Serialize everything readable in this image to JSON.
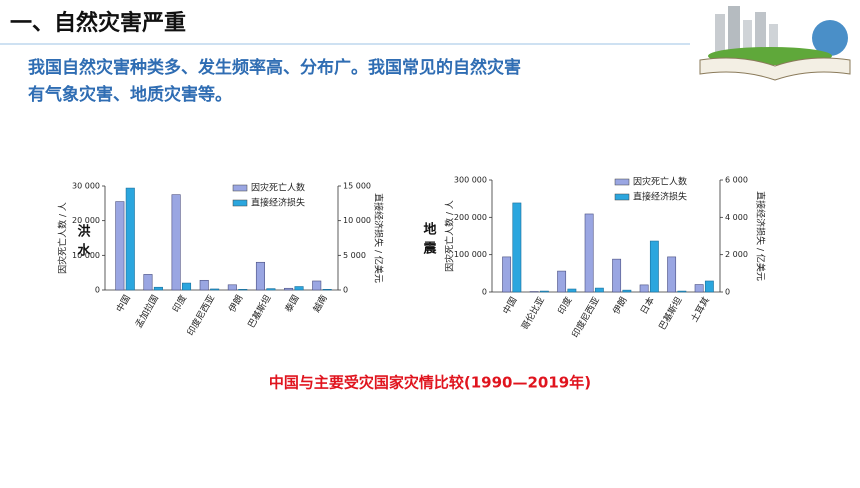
{
  "slide_title": "一、自然灾害严重",
  "intro": [
    "我国自然灾害种类多、发生频率高、分布广。我国常见的自然灾害",
    "有气象灾害、地质灾害等。"
  ],
  "chart_data": [
    {
      "type": "bar",
      "side_label": "洪水",
      "categories": [
        "中国",
        "孟加拉国",
        "印度",
        "印度尼西亚",
        "伊朗",
        "巴基斯坦",
        "泰国",
        "越南"
      ],
      "series": [
        {
          "name": "因灾死亡人数",
          "color": "#9aa6e2",
          "values": [
            25500,
            4500,
            27500,
            2800,
            1500,
            8000,
            500,
            2600
          ]
        },
        {
          "name": "直接经济损失",
          "color": "#2ba6de",
          "axis": "y2",
          "values": [
            14700,
            400,
            1000,
            150,
            100,
            200,
            500,
            100
          ]
        }
      ],
      "ylim": [
        0,
        30000
      ],
      "yticks": [
        0,
        {
          "value": 10000,
          "label": "10 000"
        },
        {
          "value": 20000,
          "label": "20 000"
        },
        {
          "value": 30000,
          "label": "30 000"
        }
      ],
      "y2lim": [
        0,
        15000
      ],
      "y2ticks": [
        0,
        {
          "value": 5000,
          "label": "5 000"
        },
        {
          "value": 10000,
          "label": "10 000"
        },
        {
          "value": 15000,
          "label": "15 000"
        }
      ],
      "ylabel": "因灾死亡人数 / 人",
      "y2label": "直接经济损失 / 亿美元"
    },
    {
      "type": "bar",
      "side_label": "地震",
      "categories": [
        "中国",
        "哥伦比亚",
        "印度",
        "印度尼西亚",
        "伊朗",
        "日本",
        "巴基斯坦",
        "土耳其"
      ],
      "series": [
        {
          "name": "因灾死亡人数",
          "color": "#9aa6e2",
          "values": [
            94000,
            1200,
            56000,
            209000,
            88000,
            19000,
            94000,
            20000
          ]
        },
        {
          "name": "直接经济损失",
          "color": "#2ba6de",
          "axis": "y2",
          "values": [
            4770,
            50,
            160,
            210,
            100,
            2730,
            50,
            590
          ]
        }
      ],
      "ylim": [
        0,
        300000
      ],
      "yticks": [
        0,
        {
          "value": 100000,
          "label": "100 000"
        },
        {
          "value": 200000,
          "label": "200 000"
        },
        {
          "value": 300000,
          "label": "300 000"
        }
      ],
      "y2lim": [
        0,
        6000
      ],
      "y2ticks": [
        0,
        {
          "value": 2000,
          "label": "2 000"
        },
        {
          "value": 4000,
          "label": "4 000"
        },
        {
          "value": 6000,
          "label": "6 000"
        }
      ],
      "ylabel": "因灾死亡人数 / 人",
      "y2label": "直接经济损失 / 亿美元"
    }
  ],
  "caption": "中国与主要受灾国家灾情比较(1990—2019年)"
}
